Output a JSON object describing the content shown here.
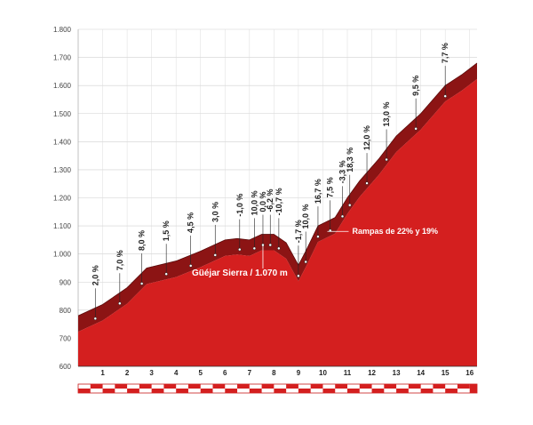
{
  "chart_data": {
    "type": "area",
    "title": "",
    "xlabel": "",
    "ylabel": "",
    "xlim": [
      0,
      16.3
    ],
    "ylim": [
      600,
      1800
    ],
    "y_ticks": [
      "600",
      "700",
      "800",
      "900",
      "1.000",
      "1.100",
      "1.200",
      "1.300",
      "1.400",
      "1.500",
      "1.600",
      "1.700",
      "1.800"
    ],
    "x_ticks": [
      "1",
      "2",
      "3",
      "4",
      "5",
      "6",
      "7",
      "8",
      "9",
      "10",
      "11",
      "12",
      "13",
      "14",
      "15",
      "16"
    ],
    "grid": true,
    "fill_color": "#d41f1f",
    "band_color": "#8c1414",
    "profile": {
      "x": [
        0,
        1,
        2,
        2.8,
        4,
        5,
        6,
        6.5,
        7,
        7.5,
        8,
        8.5,
        9,
        9.3,
        9.8,
        10.5,
        11,
        11.5,
        12.3,
        13,
        14,
        15,
        15.7,
        16.3
      ],
      "y": [
        780,
        820,
        880,
        950,
        975,
        1010,
        1050,
        1055,
        1050,
        1070,
        1070,
        1040,
        960,
        1010,
        1100,
        1130,
        1200,
        1260,
        1340,
        1420,
        1500,
        1600,
        1640,
        1680
      ]
    },
    "gradients": [
      {
        "label": "2,0 %",
        "x": 0.7
      },
      {
        "label": "7,0 %",
        "x": 1.7
      },
      {
        "label": "8,0 %",
        "x": 2.6
      },
      {
        "label": "1,5 %",
        "x": 3.6
      },
      {
        "label": "4,5 %",
        "x": 4.6
      },
      {
        "label": "3,0 %",
        "x": 5.6
      },
      {
        "label": "-1,0 %",
        "x": 6.6
      },
      {
        "label": "10,0 %",
        "x": 7.2
      },
      {
        "label": "0,0 %",
        "x": 7.55
      },
      {
        "label": "-6,2 %",
        "x": 7.85
      },
      {
        "label": "-10,7 %",
        "x": 8.2
      },
      {
        "label": "-1,7 %",
        "x": 9.0
      },
      {
        "label": "10,0 %",
        "x": 9.3
      },
      {
        "label": "16,7 %",
        "x": 9.8
      },
      {
        "label": "7,5 %",
        "x": 10.3
      },
      {
        "label": "-3,3 %",
        "x": 10.8
      },
      {
        "label": "18,3 %",
        "x": 11.1
      },
      {
        "label": "12,0 %",
        "x": 11.8
      },
      {
        "label": "13,0 %",
        "x": 12.6
      },
      {
        "label": "9,5 %",
        "x": 13.8
      },
      {
        "label": "7,7 %",
        "x": 15.0
      }
    ],
    "annotations": [
      {
        "text": "Güéjar Sierra / 1.070 m",
        "x": 7.55,
        "y": 1070
      },
      {
        "text": "Rampas de 22% y 19%",
        "x": 10.4,
        "y": 1090
      }
    ]
  }
}
